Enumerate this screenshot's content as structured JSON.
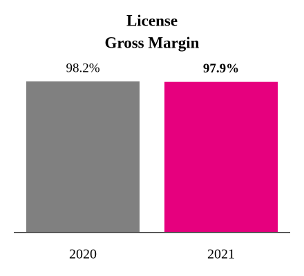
{
  "chart_data": {
    "type": "bar",
    "title": [
      "License",
      "Gross Margin"
    ],
    "categories": [
      "2020",
      "2021"
    ],
    "values": [
      98.2,
      97.9
    ],
    "value_labels": [
      "98.2%",
      "97.9%"
    ],
    "value_label_weights": [
      "normal",
      "bold"
    ],
    "colors": [
      "#808080",
      "#e6007e"
    ]
  }
}
